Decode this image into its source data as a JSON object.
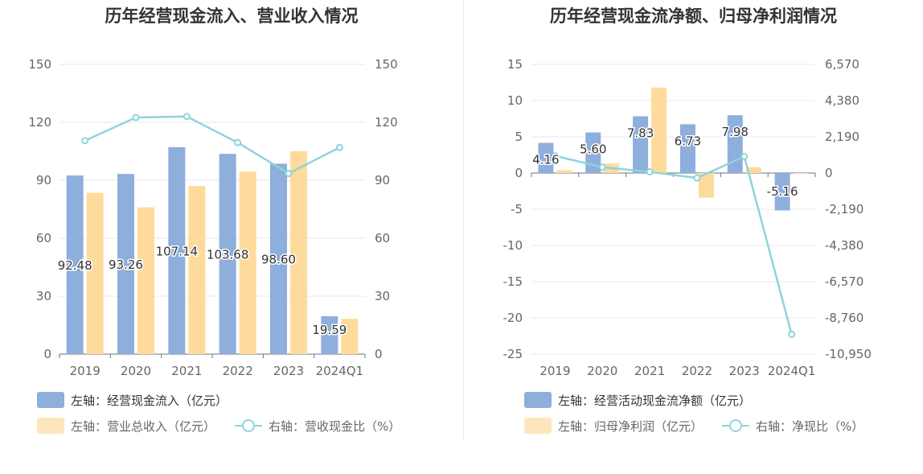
{
  "chart_data": [
    {
      "type": "bar",
      "title": "历年经营现金流入、营业收入情况",
      "categories": [
        "2019",
        "2020",
        "2021",
        "2022",
        "2023",
        "2024Q1"
      ],
      "y_left": {
        "ylim": [
          0,
          150
        ],
        "ticks": [
          "0",
          "30",
          "60",
          "90",
          "120",
          "150"
        ]
      },
      "y_right": {
        "ylim": [
          0,
          150
        ],
        "ticks": [
          "0",
          "30",
          "60",
          "90",
          "120",
          "150"
        ]
      },
      "series": [
        {
          "name": "左轴：经营现金流入（亿元）",
          "kind": "bar",
          "axis": "left",
          "color": "#8eaedc",
          "values": [
            92.48,
            93.26,
            107.14,
            103.68,
            98.6,
            19.59
          ],
          "labels": [
            "92.48",
            "93.26",
            "107.14",
            "103.68",
            "98.60",
            "19.59"
          ]
        },
        {
          "name": "左轴：营业总收入（亿元）",
          "kind": "bar",
          "axis": "left",
          "color": "#fedb9c",
          "values": [
            83.5,
            76.0,
            87.0,
            94.5,
            105.0,
            18.3
          ]
        },
        {
          "name": "右轴：营收现金比（%）",
          "kind": "line",
          "axis": "right",
          "color": "#8fd3dd",
          "values": [
            110.5,
            122.5,
            123.0,
            109.5,
            93.5,
            107.0
          ]
        }
      ],
      "grid": true,
      "legend_position": "bottom"
    },
    {
      "type": "bar",
      "title": "历年经营现金流净额、归母净利润情况",
      "categories": [
        "2019",
        "2020",
        "2021",
        "2022",
        "2023",
        "2024Q1"
      ],
      "y_left": {
        "ylim": [
          -25,
          15
        ],
        "ticks": [
          "15",
          "10",
          "5",
          "0",
          "-5",
          "-10",
          "-15",
          "-20",
          "-25"
        ]
      },
      "y_right": {
        "ylim": [
          -10950,
          6570
        ],
        "ticks": [
          "6,570",
          "4,380",
          "2,190",
          "0",
          "-2,190",
          "-4,380",
          "-6,570",
          "-8,760",
          "-10,950"
        ]
      },
      "series": [
        {
          "name": "左轴：经营活动现金流净额（亿元）",
          "kind": "bar",
          "axis": "left",
          "color": "#8eaedc",
          "values": [
            4.16,
            5.6,
            7.83,
            6.73,
            7.98,
            -5.16
          ],
          "labels": [
            "4.16",
            "5.60",
            "7.83",
            "6.73",
            "7.98",
            "-5.16"
          ]
        },
        {
          "name": "左轴：归母净利润（亿元）",
          "kind": "bar",
          "axis": "left",
          "color": "#fedb9c",
          "values": [
            0.4,
            1.3,
            11.8,
            -3.4,
            0.8,
            -0.1
          ]
        },
        {
          "name": "右轴：净现比（%）",
          "kind": "line",
          "axis": "right",
          "color": "#8fd3dd",
          "values": [
            1040,
            350,
            70,
            -300,
            1000,
            -9750
          ]
        }
      ],
      "grid": true,
      "legend_position": "bottom"
    }
  ]
}
